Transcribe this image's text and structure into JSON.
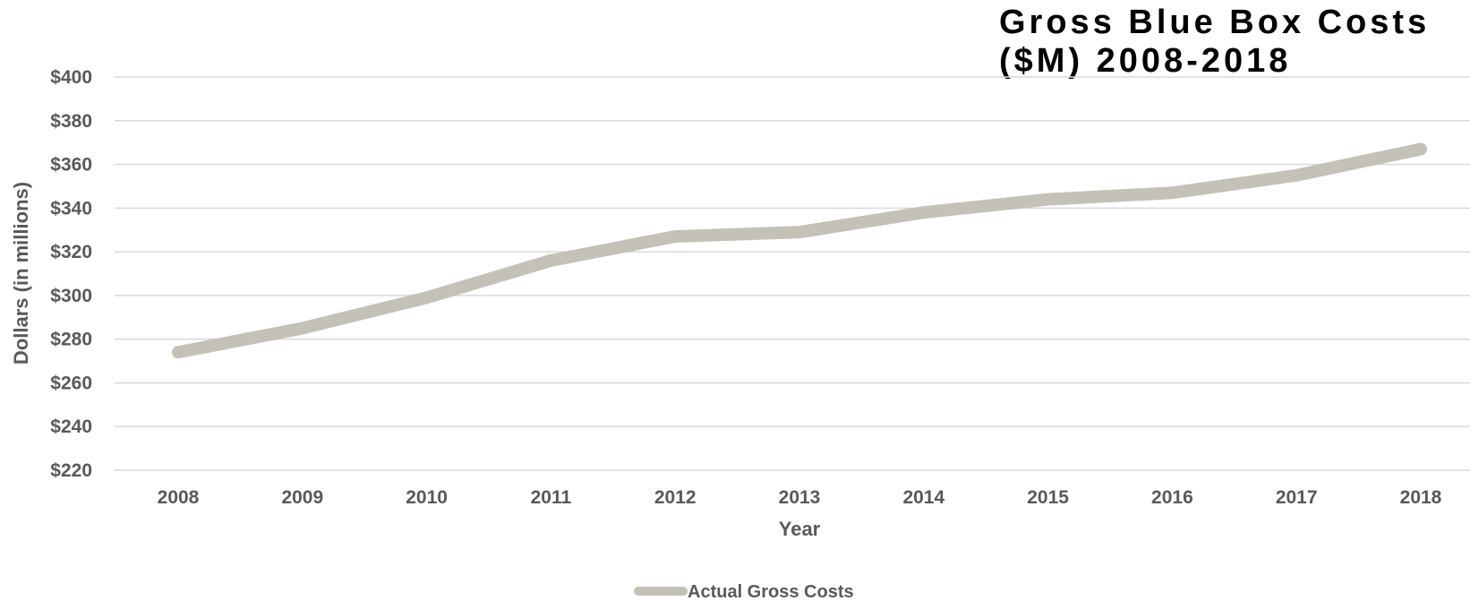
{
  "chart_data": {
    "type": "line",
    "title_lines": [
      "Gross Blue Box Costs",
      "($M) 2008-2018"
    ],
    "xlabel": "Year",
    "ylabel": "Dollars (in millions)",
    "categories": [
      "2008",
      "2009",
      "2010",
      "2011",
      "2012",
      "2013",
      "2014",
      "2015",
      "2016",
      "2017",
      "2018"
    ],
    "series": [
      {
        "name": "Actual Gross Costs",
        "values": [
          274,
          285,
          299,
          316,
          327,
          329,
          338,
          344,
          347,
          355,
          367
        ],
        "color": "#c4c1b8"
      }
    ],
    "ylim": [
      220,
      400
    ],
    "yticks": [
      "$220",
      "$240",
      "$260",
      "$280",
      "$300",
      "$320",
      "$340",
      "$360",
      "$380",
      "$400"
    ],
    "grid": true,
    "legend_position": "bottom"
  }
}
